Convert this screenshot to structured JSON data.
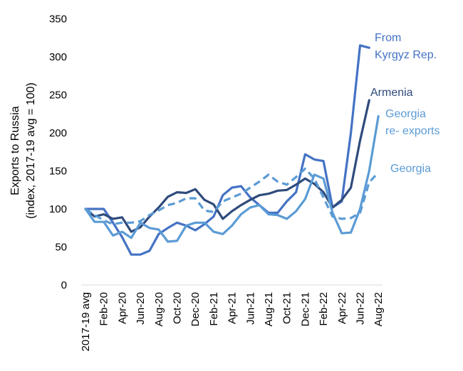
{
  "chart_data": {
    "type": "line",
    "ylabel_line1": "Exports to Russia",
    "ylabel_line2": "(index, 2017-19 avg = 100)",
    "ylim": [
      0,
      350
    ],
    "yticks": [
      0,
      50,
      100,
      150,
      200,
      250,
      300,
      350
    ],
    "grid": false,
    "legend": "inline labels at line ends",
    "x": [
      "2017-19 avg",
      "Jan-20",
      "Feb-20",
      "Mar-20",
      "Apr-20",
      "May-20",
      "Jun-20",
      "Jul-20",
      "Aug-20",
      "Sep-20",
      "Oct-20",
      "Nov-20",
      "Dec-20",
      "Jan-21",
      "Feb-21",
      "Mar-21",
      "Apr-21",
      "May-21",
      "Jun-21",
      "Jul-21",
      "Aug-21",
      "Sep-21",
      "Oct-21",
      "Nov-21",
      "Dec-21",
      "Jan-22",
      "Feb-22",
      "Mar-22",
      "Apr-22",
      "May-22",
      "Jun-22",
      "Jul-22",
      "Aug-22"
    ],
    "xtick_labels": [
      "2017-19 avg",
      "",
      "Feb-20",
      "",
      "Apr-20",
      "",
      "Jun-20",
      "",
      "Aug-20",
      "",
      "Oct-20",
      "",
      "Dec-20",
      "",
      "Feb-21",
      "",
      "Apr-21",
      "",
      "Jun-21",
      "",
      "Aug-21",
      "",
      "Oct-21",
      "",
      "Dec-21",
      "",
      "Feb-22",
      "",
      "Apr-22",
      "",
      "Jun-22",
      "",
      "Aug-22"
    ],
    "series": [
      {
        "name": "From Kyrgyz Rep.",
        "label_lines": [
          "From",
          "Kyrgyz Rep."
        ],
        "color": "#4472c4",
        "dash": false,
        "values": [
          100,
          100,
          100,
          82,
          63,
          40,
          40,
          45,
          67,
          75,
          82,
          78,
          72,
          80,
          90,
          118,
          128,
          130,
          115,
          105,
          95,
          95,
          110,
          122,
          172,
          165,
          163,
          102,
          110,
          200,
          315,
          312,
          null
        ]
      },
      {
        "name": "Armenia",
        "label_lines": [
          "Armenia"
        ],
        "color": "#2f4b7c",
        "dash": false,
        "values": [
          100,
          90,
          93,
          87,
          89,
          70,
          76,
          90,
          102,
          116,
          122,
          121,
          126,
          112,
          106,
          87,
          97,
          105,
          112,
          118,
          120,
          124,
          125,
          132,
          140,
          133,
          122,
          102,
          112,
          128,
          190,
          243,
          null
        ]
      },
      {
        "name": "Georgia re- exports",
        "label_lines": [
          "Georgia",
          "re- exports"
        ],
        "color": "#5b9bd5",
        "dash": false,
        "values": [
          100,
          83,
          83,
          65,
          70,
          62,
          82,
          75,
          73,
          57,
          58,
          78,
          82,
          82,
          70,
          67,
          78,
          93,
          102,
          105,
          93,
          92,
          87,
          97,
          113,
          145,
          140,
          95,
          68,
          69,
          100,
          150,
          222
        ]
      },
      {
        "name": "Georgia",
        "label_lines": [
          "Georgia"
        ],
        "color": "#5b9bd5",
        "dash": true,
        "values": [
          100,
          92,
          85,
          80,
          82,
          82,
          84,
          92,
          98,
          105,
          108,
          114,
          114,
          98,
          96,
          110,
          115,
          120,
          128,
          136,
          145,
          136,
          132,
          142,
          153,
          140,
          115,
          90,
          87,
          88,
          95,
          135,
          148
        ]
      }
    ]
  }
}
